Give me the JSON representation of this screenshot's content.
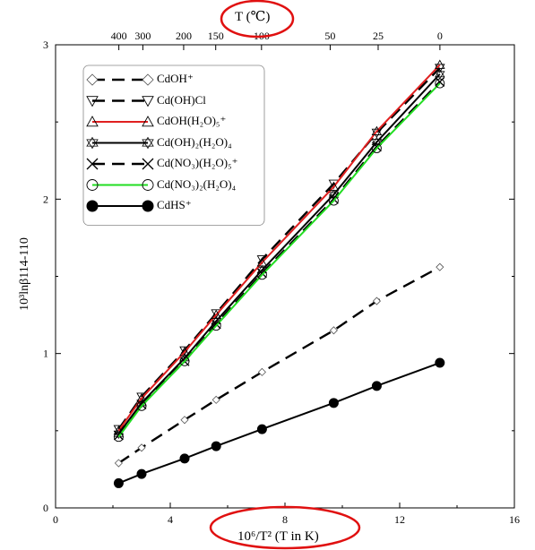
{
  "chart_data": {
    "type": "line",
    "title": "",
    "xlabel": "10⁶/T² (T in K)",
    "ylabel": "10³lnβ114-110",
    "top_axis_label": "T (℃)",
    "xlim": [
      0,
      16
    ],
    "ylim": [
      0,
      3
    ],
    "x_ticks": [
      "0",
      "4",
      "8",
      "12",
      "16"
    ],
    "y_ticks": [
      "0",
      "1",
      "2",
      "3"
    ],
    "top_ticks": [
      {
        "label": "400",
        "T_celsius": 400
      },
      {
        "label": "300",
        "T_celsius": 300
      },
      {
        "label": "200",
        "T_celsius": 200
      },
      {
        "label": "150",
        "T_celsius": 150
      },
      {
        "label": "100",
        "T_celsius": 100
      },
      {
        "label": "50",
        "T_celsius": 50
      },
      {
        "label": "25",
        "T_celsius": 25
      },
      {
        "label": "0",
        "T_celsius": 0
      }
    ],
    "grid": false,
    "legend_position": "top-left",
    "annotations": [
      "red ellipse around top axis label",
      "red ellipse around bottom axis label"
    ],
    "x": [
      2.2,
      3.0,
      4.5,
      5.6,
      7.2,
      9.7,
      11.2,
      13.4
    ],
    "series": [
      {
        "name": "CdOH⁺",
        "marker": "diamond",
        "dash": "dashed",
        "color": "#000000",
        "values": [
          0.29,
          0.39,
          0.57,
          0.7,
          0.88,
          1.15,
          1.34,
          1.56
        ]
      },
      {
        "name": "Cd(OH)Cl",
        "marker": "triangle-down",
        "dash": "dashed",
        "color": "#000000",
        "values": [
          0.51,
          0.72,
          1.02,
          1.26,
          1.61,
          2.1,
          2.43,
          2.85
        ]
      },
      {
        "name": "CdOH(H₂O)₅⁺",
        "marker": "triangle-up",
        "dash": "solid",
        "color": "#e02020",
        "values": [
          0.5,
          0.71,
          1.01,
          1.25,
          1.59,
          2.08,
          2.44,
          2.87
        ]
      },
      {
        "name": "Cd(OH)₂(H₂O)₄",
        "marker": "star",
        "dash": "solid",
        "color": "#000000",
        "values": [
          0.48,
          0.68,
          0.97,
          1.21,
          1.54,
          2.03,
          2.37,
          2.81
        ]
      },
      {
        "name": "Cd(NO₃)(H₂O)₅⁺",
        "marker": "x",
        "dash": "dashed",
        "color": "#000000",
        "values": [
          0.47,
          0.67,
          0.95,
          1.19,
          1.52,
          2.0,
          2.34,
          2.76
        ]
      },
      {
        "name": "Cd(NO₃)₂(H₂O)₄",
        "marker": "circle-open",
        "dash": "solid",
        "color": "#22dd22",
        "values": [
          0.46,
          0.66,
          0.95,
          1.18,
          1.51,
          1.99,
          2.33,
          2.75
        ]
      },
      {
        "name": "CdHS⁺",
        "marker": "circle-filled",
        "dash": "solid",
        "color": "#000000",
        "values": [
          0.16,
          0.22,
          0.32,
          0.4,
          0.51,
          0.68,
          0.79,
          0.94
        ]
      }
    ]
  }
}
